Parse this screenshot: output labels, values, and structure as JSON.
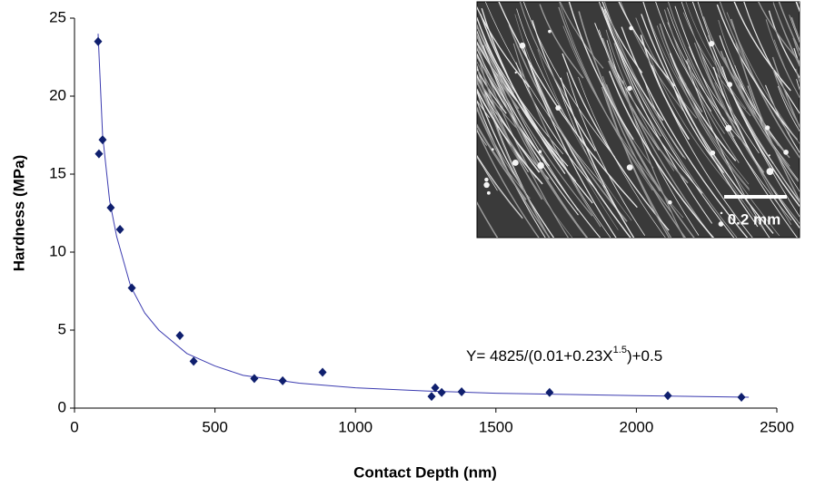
{
  "chart_data": {
    "type": "scatter",
    "x_label": "Contact Depth (nm)",
    "y_label": "Hardness (MPa)",
    "xlim": [
      0,
      2500
    ],
    "ylim": [
      0,
      25
    ],
    "xticks": [
      0,
      500,
      1000,
      1500,
      2000,
      2500
    ],
    "yticks": [
      0,
      5,
      10,
      15,
      20,
      25
    ],
    "series": [
      {
        "color": "#0f1f6e",
        "x": [
          84,
          87,
          100,
          129,
          162,
          204,
          375,
          424,
          640,
          741,
          883,
          1271,
          1284,
          1307,
          1378,
          1691,
          2112,
          2374
        ],
        "values": [
          23.5,
          16.3,
          17.2,
          12.85,
          11.45,
          7.7,
          4.65,
          3.0,
          1.9,
          1.75,
          2.3,
          0.75,
          1.3,
          1.0,
          1.05,
          1.0,
          0.8,
          0.7
        ]
      },
      {
        "color": "#3b3bb0",
        "x": [
          84,
          100,
          125,
          150,
          200,
          250,
          300,
          400,
          500,
          600,
          800,
          1000,
          1250,
          1500,
          2000,
          2400
        ],
        "values": [
          24,
          17.5,
          13.3,
          11,
          7.8,
          6.1,
          5,
          3.5,
          2.7,
          2.1,
          1.6,
          1.3,
          1.1,
          0.95,
          0.8,
          0.7
        ]
      }
    ],
    "annotation": [
      "Y= 4825/(0.01+0.23X",
      "1.5",
      ")+0.5"
    ],
    "inset_scale_label": "0.2 mm"
  }
}
